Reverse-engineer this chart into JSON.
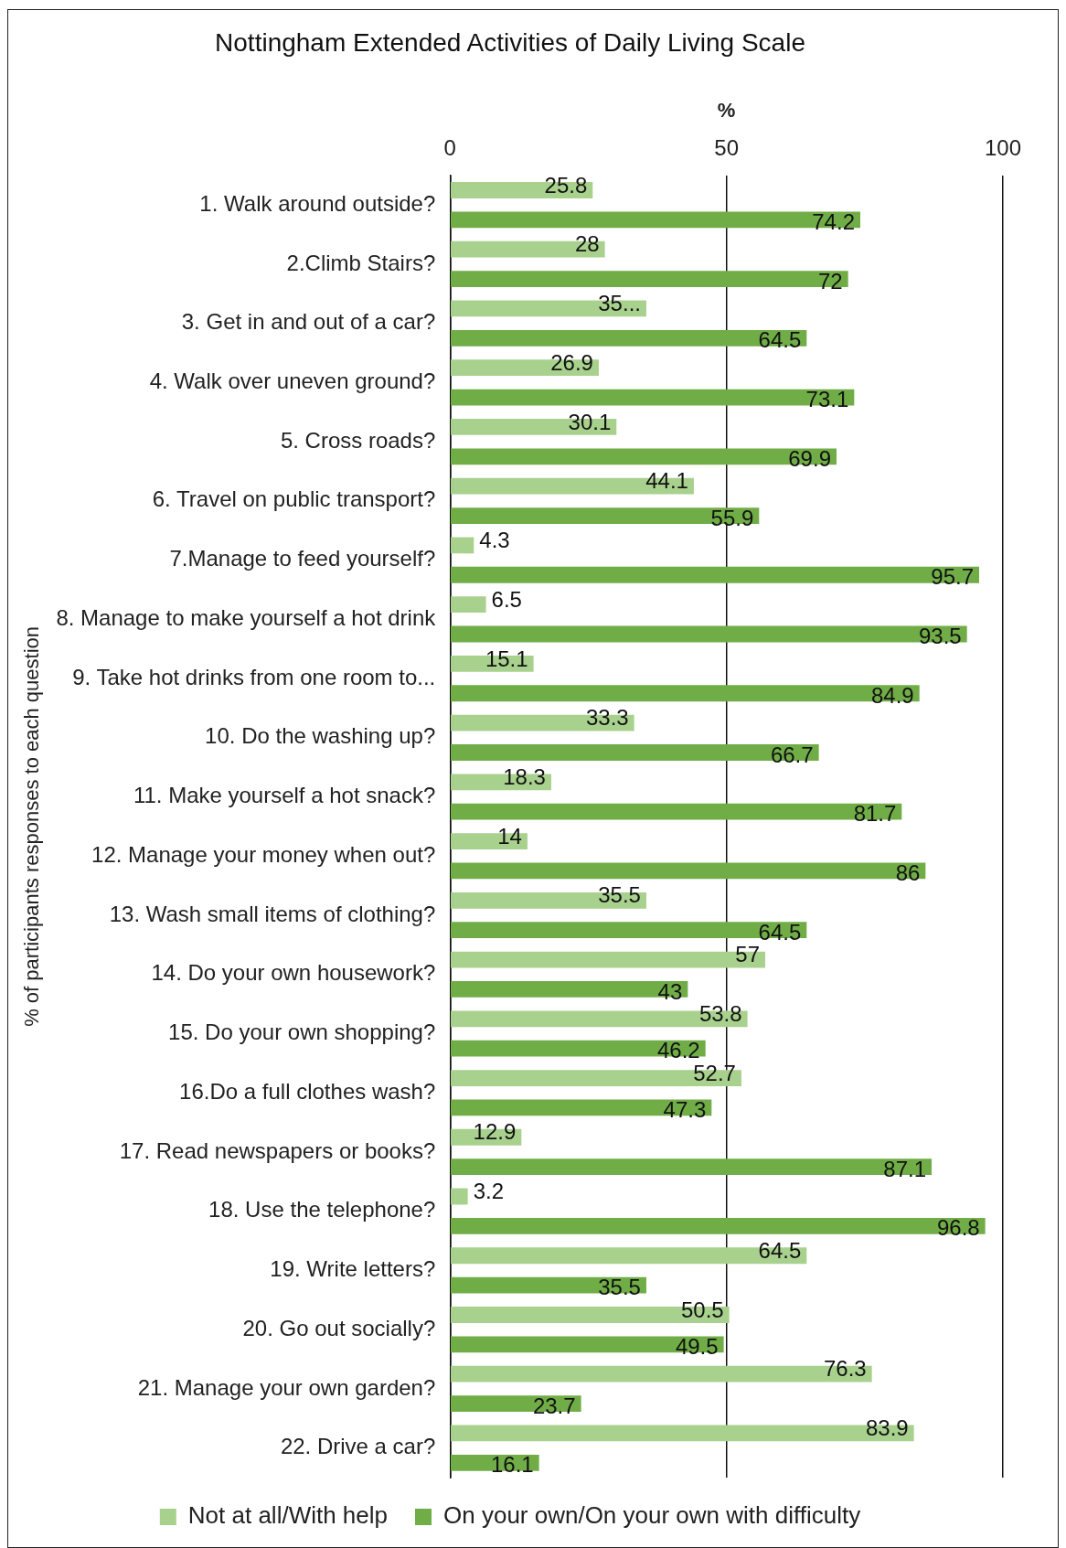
{
  "chart_data": {
    "type": "bar",
    "orientation": "horizontal",
    "title": "Nottingham Extended Activities of Daily Living Scale",
    "xlabel": "%",
    "ylabel": "% of participants responses to each question",
    "categories": [
      "1. Walk around outside?",
      "2.Climb Stairs?",
      "3. Get in and out of a car?",
      "4. Walk over uneven ground?",
      "5. Cross roads?",
      "6. Travel on public transport?",
      "7.Manage to feed yourself?",
      "8. Manage to make yourself a hot drink",
      "9. Take hot drinks from one room to...",
      "10. Do the washing up?",
      "11. Make yourself a hot snack?",
      "12. Manage your money when out?",
      "13. Wash small items of clothing?",
      "14. Do your own housework?",
      "15. Do your own shopping?",
      "16.Do a full clothes wash?",
      "17. Read newspapers or books?",
      "18. Use the telephone?",
      "19. Write letters?",
      "20. Go out socially?",
      "21. Manage your own garden?",
      "22. Drive a car?"
    ],
    "series": [
      {
        "name": "Not at all/With help",
        "color": "#a9d18e",
        "values": [
          25.8,
          28,
          35.5,
          26.9,
          30.1,
          44.1,
          4.3,
          6.5,
          15.1,
          33.3,
          18.3,
          14,
          35.5,
          57,
          53.8,
          52.7,
          12.9,
          3.2,
          64.5,
          50.5,
          76.3,
          83.9
        ],
        "value_labels": [
          "25.8",
          "28",
          "35...",
          "26.9",
          "30.1",
          "44.1",
          "4.3",
          "6.5",
          "15.1",
          "33.3",
          "18.3",
          "14",
          "35.5",
          "57",
          "53.8",
          "52.7",
          "12.9",
          "3.2",
          "64.5",
          "50.5",
          "76.3",
          "83.9"
        ]
      },
      {
        "name": "On your own/On your own with difficulty",
        "color": "#70ad47",
        "values": [
          74.2,
          72,
          64.5,
          73.1,
          69.9,
          55.9,
          95.7,
          93.5,
          84.9,
          66.7,
          81.7,
          86,
          64.5,
          43,
          46.2,
          47.3,
          87.1,
          96.8,
          35.5,
          49.5,
          23.7,
          16.1
        ],
        "value_labels": [
          "74.2",
          "72",
          "64.5",
          "73.1",
          "69.9",
          "55.9",
          "95.7",
          "93.5",
          "84.9",
          "66.7",
          "81.7",
          "86",
          "64.5",
          "43",
          "46.2",
          "47.3",
          "87.1",
          "96.8",
          "35.5",
          "49.5",
          "23.7",
          "16.1"
        ]
      }
    ],
    "xlim": [
      0,
      100
    ],
    "xticks": [
      0,
      50,
      100
    ],
    "grid": "x",
    "legend": "bottom"
  }
}
